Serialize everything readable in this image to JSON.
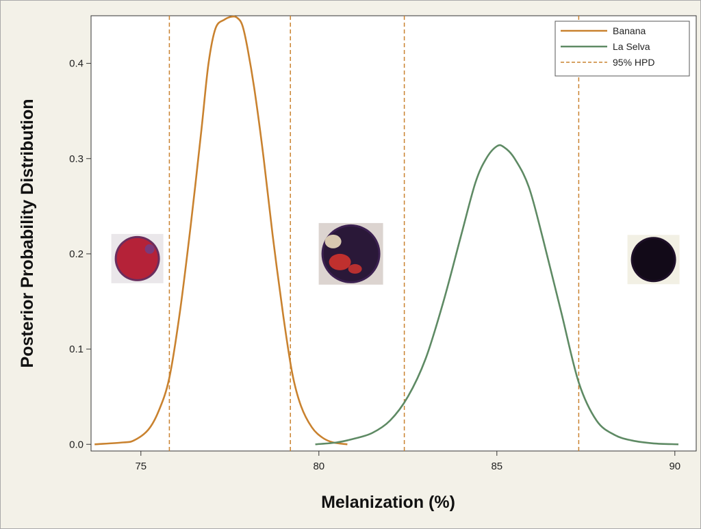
{
  "chart_data": {
    "type": "line",
    "xlabel": "Melanization (%)",
    "ylabel": "Posterior Probability Distribution",
    "xlim": [
      73.6,
      90.6
    ],
    "ylim": [
      -0.007,
      0.45
    ],
    "x_ticks": [
      75,
      80,
      85,
      90
    ],
    "x_tick_labels": [
      "75",
      "80",
      "85",
      "90"
    ],
    "y_ticks": [
      0.0,
      0.1,
      0.2,
      0.3,
      0.4
    ],
    "y_tick_labels": [
      "0.0",
      "0.1",
      "0.2",
      "0.3",
      "0.4"
    ],
    "grid": false,
    "legend_position": "top-right",
    "series": [
      {
        "name": "Banana",
        "color": "#c9822f",
        "style": "solid",
        "x": [
          73.7,
          74.5,
          74.8,
          75.2,
          75.5,
          75.8,
          76.1,
          76.4,
          76.7,
          76.9,
          77.1,
          77.35,
          77.55,
          77.7,
          77.85,
          78.0,
          78.2,
          78.45,
          78.7,
          79.0,
          79.25,
          79.5,
          79.8,
          80.1,
          80.4,
          80.8
        ],
        "y": [
          0.0,
          0.002,
          0.004,
          0.015,
          0.035,
          0.07,
          0.14,
          0.23,
          0.33,
          0.4,
          0.437,
          0.446,
          0.449,
          0.448,
          0.44,
          0.415,
          0.37,
          0.3,
          0.22,
          0.135,
          0.075,
          0.04,
          0.018,
          0.007,
          0.002,
          0.0
        ]
      },
      {
        "name": "La Selva",
        "color": "#5e8a64",
        "style": "solid",
        "x": [
          79.9,
          80.5,
          81.0,
          81.5,
          82.0,
          82.5,
          83.0,
          83.5,
          84.0,
          84.4,
          84.7,
          85.0,
          85.2,
          85.5,
          85.9,
          86.3,
          86.8,
          87.3,
          87.8,
          88.3,
          88.8,
          89.4,
          90.1
        ],
        "y": [
          0.0,
          0.002,
          0.006,
          0.012,
          0.025,
          0.05,
          0.09,
          0.15,
          0.22,
          0.275,
          0.3,
          0.313,
          0.312,
          0.3,
          0.27,
          0.215,
          0.14,
          0.065,
          0.025,
          0.01,
          0.004,
          0.001,
          0.0
        ]
      }
    ],
    "hpd_lines": {
      "name": "95% HPD",
      "color": "#c9822f",
      "style": "dashed",
      "x": [
        75.8,
        79.2,
        82.4,
        87.3
      ]
    },
    "legend_entries": [
      "Banana",
      "La Selva",
      "95% HPD"
    ],
    "inset_images": [
      {
        "name": "red-cell-image",
        "x": 74.9,
        "y": 0.195,
        "core": "#b52238",
        "ring": "#6a2e5e",
        "bg": "#eae7ea"
      },
      {
        "name": "mixed-cell-image",
        "x": 80.9,
        "y": 0.2,
        "core": "#2a1838",
        "ring": "#3b2050",
        "bg": "#dcd4d0"
      },
      {
        "name": "black-cell-image",
        "x": 89.4,
        "y": 0.194,
        "core": "#120a18",
        "ring": "#1e1028",
        "bg": "#f2f0e4"
      }
    ]
  }
}
